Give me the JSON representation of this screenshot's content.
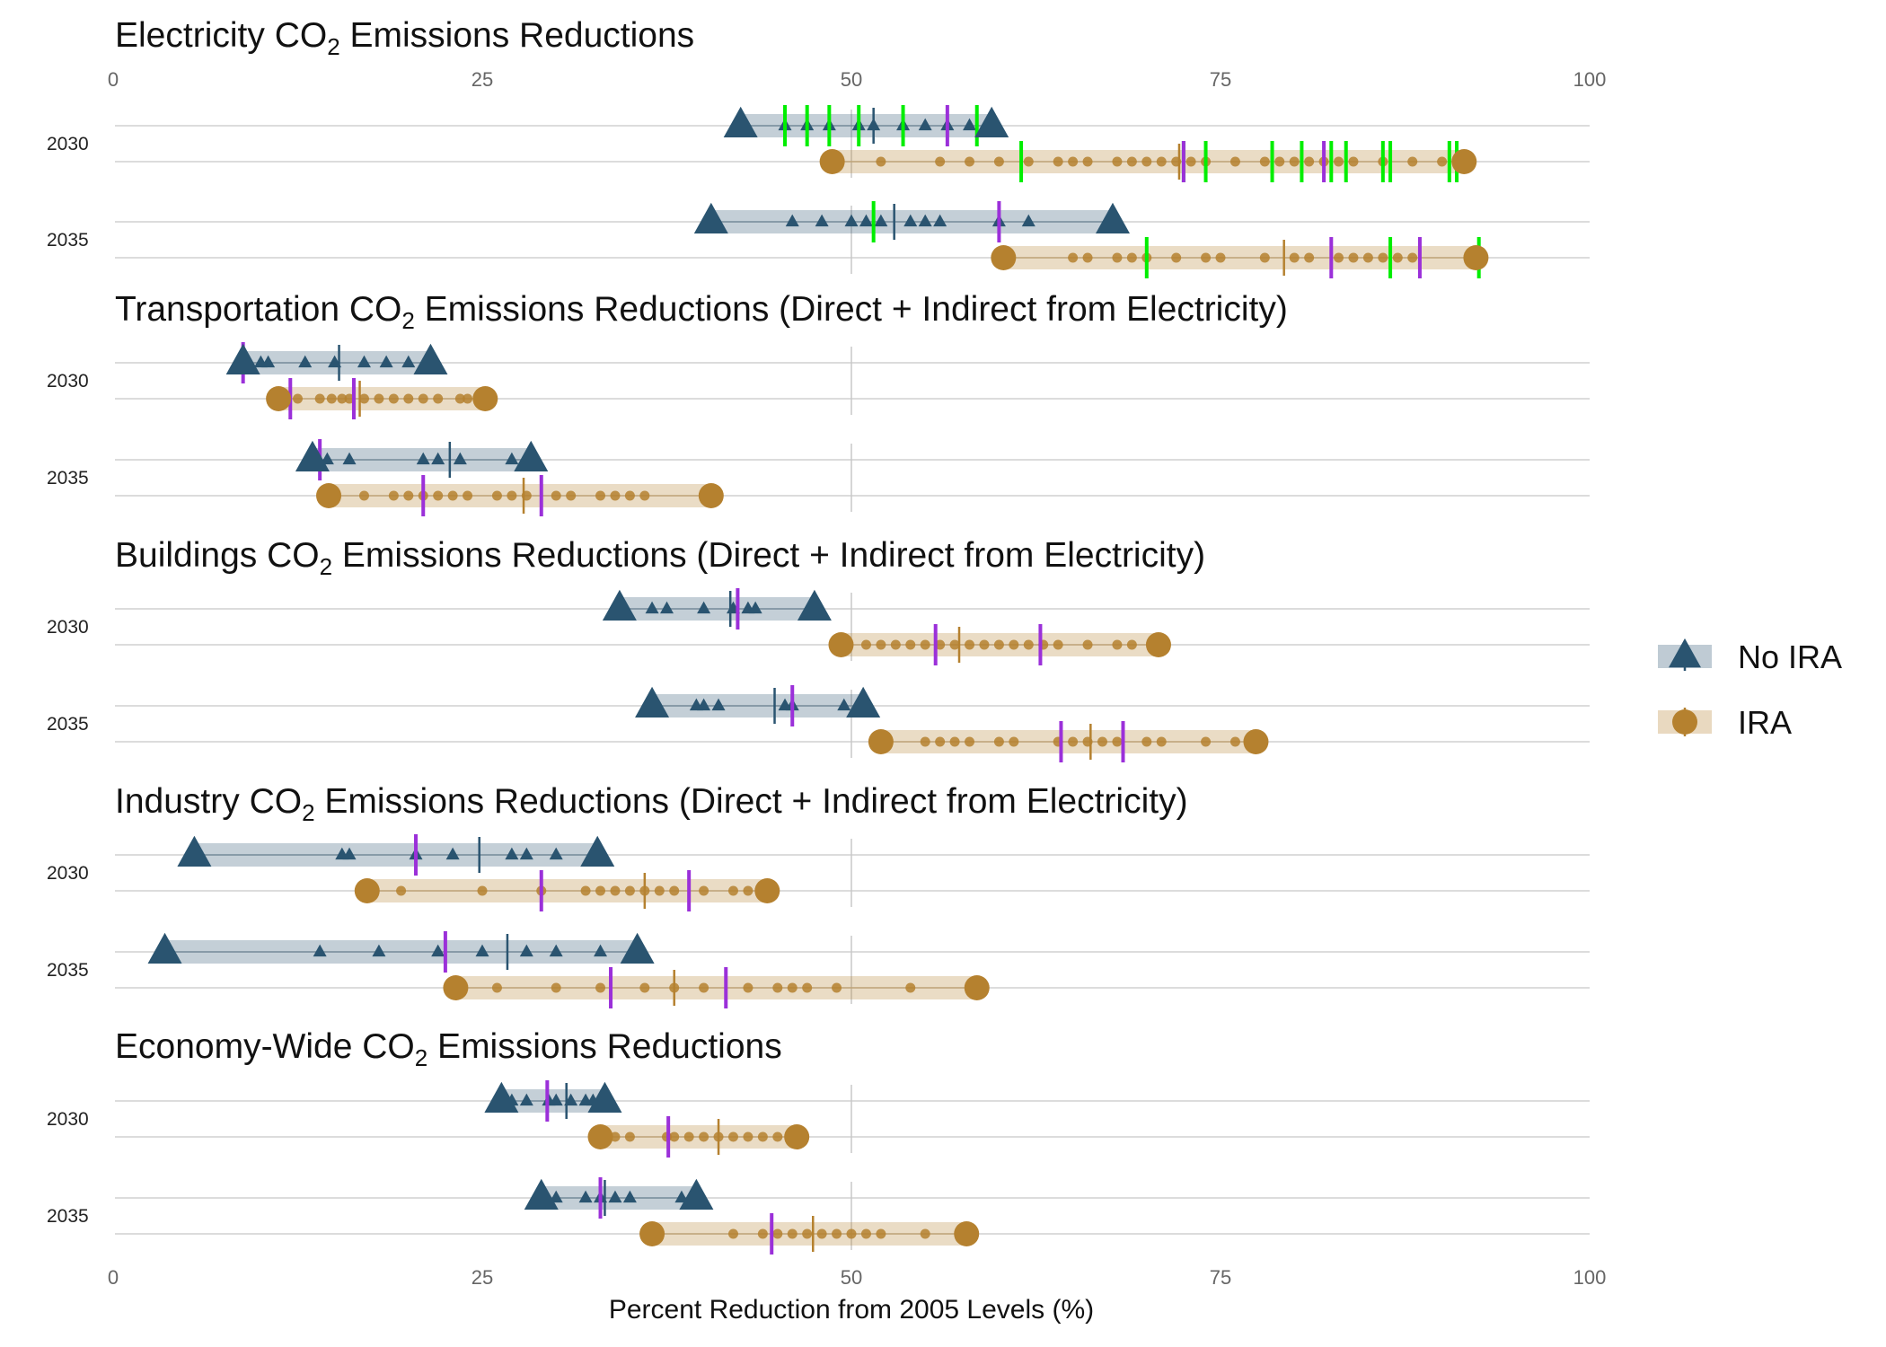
{
  "chart_data": {
    "type": "range-dot",
    "xlabel": "Percent Reduction from 2005 Levels (%)",
    "xlim": [
      0,
      100
    ],
    "xticks": [
      "0",
      "25",
      "50",
      "75",
      "100"
    ],
    "reference_line_x": 50,
    "legend": [
      {
        "name": "No IRA",
        "color": "#2a5470",
        "marker": "triangle"
      },
      {
        "name": "IRA",
        "color": "#b5812f",
        "marker": "circle"
      }
    ],
    "highlight_colors": {
      "purple": "#9b30d9",
      "green": "#00ee00"
    },
    "panels": [
      {
        "title_main": "Electricity CO",
        "title_sub": "2",
        "title_rest": " Emissions Reductions",
        "years": [
          {
            "year": "2030",
            "no_ira": {
              "min": 42.5,
              "max": 59.5,
              "median": 51.5,
              "points": [
                45.5,
                47,
                48.5,
                50.5,
                51.5,
                53.5,
                55,
                56.5,
                58
              ],
              "purple": [
                56.5
              ],
              "green": [
                45.5,
                47,
                48.5,
                50.5,
                53.5,
                58.5
              ]
            },
            "ira": {
              "min": 48.7,
              "max": 91.5,
              "median": 72.2,
              "points": [
                52,
                56,
                58,
                60,
                62,
                64,
                65,
                66,
                68,
                69,
                70,
                71,
                72,
                73,
                74,
                76,
                78,
                79,
                80,
                81,
                82,
                83,
                84,
                86,
                88,
                90
              ],
              "purple": [
                72.5,
                82
              ],
              "green": [
                61.5,
                72.5,
                74,
                78.5,
                80.5,
                82.5,
                83.5,
                86,
                86.5,
                90.5,
                91
              ]
            }
          },
          {
            "year": "2035",
            "no_ira": {
              "min": 40.5,
              "max": 67.7,
              "median": 52.9,
              "points": [
                46,
                48,
                50,
                51,
                52,
                54,
                55,
                56,
                60,
                62
              ],
              "purple": [
                60
              ],
              "green": [
                51.5
              ]
            },
            "ira": {
              "min": 60.3,
              "max": 92.3,
              "median": 79.3,
              "points": [
                65,
                66,
                68,
                69,
                70,
                72,
                74,
                75,
                78,
                80,
                81,
                83,
                84,
                85,
                86,
                87,
                88
              ],
              "purple": [
                82.5,
                88.5
              ],
              "green": [
                70,
                86.5,
                92.5
              ]
            }
          }
        ]
      },
      {
        "title_main": "Transportation CO",
        "title_sub": "2",
        "title_rest": " Emissions Reductions (Direct + Indirect from Electricity)",
        "years": [
          {
            "year": "2030",
            "no_ira": {
              "min": 8.8,
              "max": 21.5,
              "median": 15.3,
              "points": [
                10,
                10.5,
                13,
                15,
                17,
                18.5,
                20
              ],
              "purple": [
                8.8
              ],
              "green": []
            },
            "ira": {
              "min": 11.2,
              "max": 25.2,
              "median": 16.7,
              "points": [
                12.5,
                14,
                14.8,
                15.5,
                16,
                17,
                18,
                19,
                20,
                21,
                22,
                23.5,
                24
              ],
              "purple": [
                12,
                16.3
              ],
              "green": []
            }
          },
          {
            "year": "2035",
            "no_ira": {
              "min": 13.5,
              "max": 28.3,
              "median": 22.8,
              "points": [
                14.5,
                16,
                21,
                22,
                23.5,
                27
              ],
              "purple": [
                14
              ],
              "green": []
            },
            "ira": {
              "min": 14.6,
              "max": 40.5,
              "median": 27.8,
              "points": [
                17,
                19,
                20,
                21,
                22,
                23,
                24,
                26,
                27,
                28,
                30,
                31,
                33,
                34,
                35,
                36
              ],
              "purple": [
                21,
                29
              ],
              "green": []
            }
          }
        ]
      },
      {
        "title_main": "Buildings CO",
        "title_sub": "2",
        "title_rest": " Emissions Reductions (Direct + Indirect from Electricity)",
        "years": [
          {
            "year": "2030",
            "no_ira": {
              "min": 34.3,
              "max": 47.5,
              "median": 41.8,
              "points": [
                36.5,
                37.5,
                40,
                42,
                43,
                43.5
              ],
              "purple": [
                42.3
              ],
              "green": []
            },
            "ira": {
              "min": 49.3,
              "max": 70.8,
              "median": 57.3,
              "points": [
                51,
                52,
                53,
                54,
                55,
                56,
                57,
                58,
                59,
                60,
                61,
                62,
                63,
                64,
                66,
                68,
                69
              ],
              "purple": [
                55.7,
                62.8
              ],
              "green": []
            }
          },
          {
            "year": "2035",
            "no_ira": {
              "min": 36.5,
              "max": 50.8,
              "median": 44.8,
              "points": [
                39.5,
                40,
                41,
                45.5,
                46,
                49.5
              ],
              "purple": [
                46
              ],
              "green": []
            },
            "ira": {
              "min": 52,
              "max": 77.4,
              "median": 66.2,
              "points": [
                55,
                56,
                57,
                58,
                60,
                61,
                64,
                65,
                66,
                67,
                68,
                70,
                71,
                74,
                76
              ],
              "purple": [
                64.2,
                68.4
              ],
              "green": []
            }
          }
        ]
      },
      {
        "title_main": "Industry CO",
        "title_sub": "2",
        "title_rest": " Emissions Reductions (Direct + Indirect from Electricity)",
        "years": [
          {
            "year": "2030",
            "no_ira": {
              "min": 5.5,
              "max": 32.8,
              "median": 24.8,
              "points": [
                15.5,
                16,
                20.5,
                23,
                27,
                28,
                30
              ],
              "purple": [
                20.5
              ],
              "green": []
            },
            "ira": {
              "min": 17.2,
              "max": 44.3,
              "median": 36,
              "points": [
                19.5,
                25,
                29,
                32,
                33,
                34,
                35,
                36,
                37,
                38,
                40,
                42,
                43
              ],
              "purple": [
                29,
                39
              ],
              "green": []
            }
          },
          {
            "year": "2035",
            "no_ira": {
              "min": 3.5,
              "max": 35.5,
              "median": 26.7,
              "points": [
                14,
                18,
                22,
                25,
                28,
                30,
                33
              ],
              "purple": [
                22.5
              ],
              "green": []
            },
            "ira": {
              "min": 23.2,
              "max": 58.5,
              "median": 38,
              "points": [
                26,
                30,
                33,
                36,
                38,
                40,
                43,
                45,
                46,
                47,
                49,
                54
              ],
              "purple": [
                33.7,
                41.5
              ],
              "green": []
            }
          }
        ]
      },
      {
        "title_main": "Economy-Wide CO",
        "title_sub": "2",
        "title_rest": " Emissions Reductions",
        "years": [
          {
            "year": "2030",
            "no_ira": {
              "min": 26.3,
              "max": 33.3,
              "median": 30.7,
              "points": [
                27,
                28,
                29.5,
                30,
                31,
                32,
                32.5
              ],
              "purple": [
                29.4
              ],
              "green": []
            },
            "ira": {
              "min": 33,
              "max": 46.3,
              "median": 41,
              "points": [
                34,
                35,
                37.5,
                38,
                39,
                40,
                41,
                42,
                43,
                44,
                45
              ],
              "purple": [
                37.6
              ],
              "green": []
            }
          },
          {
            "year": "2035",
            "no_ira": {
              "min": 29,
              "max": 39.5,
              "median": 33.3,
              "points": [
                30,
                32,
                33,
                34,
                35,
                38.5
              ],
              "purple": [
                33
              ],
              "green": []
            },
            "ira": {
              "min": 36.5,
              "max": 57.8,
              "median": 47.4,
              "points": [
                42,
                44,
                45,
                46,
                47,
                48,
                49,
                50,
                51,
                52,
                55
              ],
              "purple": [
                44.6
              ],
              "green": []
            }
          }
        ]
      }
    ]
  }
}
